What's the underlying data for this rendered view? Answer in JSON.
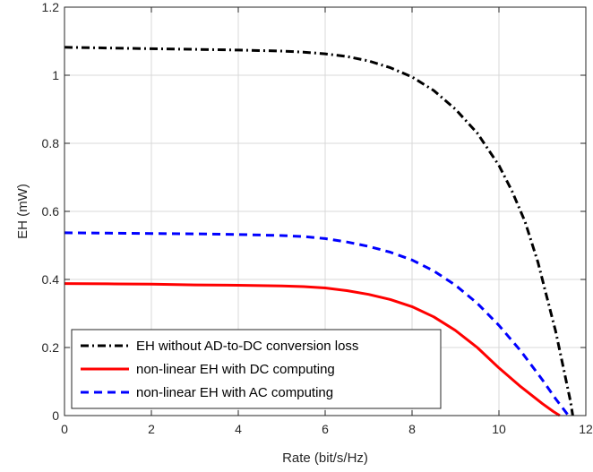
{
  "chart_data": {
    "type": "line",
    "xlabel": "Rate (bit/s/Hz)",
    "ylabel": "EH (mW)",
    "xlim": [
      0,
      12
    ],
    "ylim": [
      0,
      1.2
    ],
    "xticks": [
      0,
      2,
      4,
      6,
      8,
      10,
      12
    ],
    "yticks": [
      0,
      0.2,
      0.4,
      0.6,
      0.8,
      1,
      1.2
    ],
    "xtick_labels": [
      "0",
      "2",
      "4",
      "6",
      "8",
      "10",
      "12"
    ],
    "ytick_labels": [
      "0",
      "0.2",
      "0.4",
      "0.6",
      "0.8",
      "1",
      "1.2"
    ],
    "grid": true,
    "legend_position": "bottom-left",
    "series": [
      {
        "name": "EH without AD-to-DC conversion loss",
        "color": "#000000",
        "style": "dashdot",
        "x": [
          0,
          1,
          2,
          3,
          4,
          5,
          5.5,
          6,
          6.5,
          7,
          7.5,
          8,
          8.5,
          9,
          9.5,
          10,
          10.3,
          10.6,
          10.9,
          11.1,
          11.3,
          11.5,
          11.65,
          11.7
        ],
        "y": [
          1.082,
          1.08,
          1.078,
          1.076,
          1.074,
          1.071,
          1.068,
          1.063,
          1.055,
          1.042,
          1.022,
          0.995,
          0.955,
          0.9,
          0.83,
          0.735,
          0.66,
          0.57,
          0.45,
          0.35,
          0.25,
          0.13,
          0.04,
          0
        ]
      },
      {
        "name": "non-linear EH with DC computing",
        "color": "#ff0000",
        "style": "solid",
        "x": [
          0,
          1,
          2,
          3,
          4,
          5,
          5.5,
          6,
          6.5,
          7,
          7.5,
          8,
          8.5,
          9,
          9.5,
          10,
          10.5,
          11,
          11.25,
          11.4
        ],
        "y": [
          0.388,
          0.387,
          0.386,
          0.384,
          0.383,
          0.381,
          0.379,
          0.375,
          0.367,
          0.356,
          0.341,
          0.32,
          0.29,
          0.25,
          0.2,
          0.14,
          0.085,
          0.035,
          0.012,
          0
        ]
      },
      {
        "name": "non-linear EH with AC computing",
        "color": "#0000ff",
        "style": "dashed",
        "x": [
          0,
          1,
          2,
          3,
          4,
          5,
          5.5,
          6,
          6.5,
          7,
          7.5,
          8,
          8.5,
          9,
          9.5,
          10,
          10.5,
          11,
          11.3,
          11.6
        ],
        "y": [
          0.537,
          0.536,
          0.535,
          0.534,
          0.532,
          0.529,
          0.526,
          0.52,
          0.51,
          0.497,
          0.48,
          0.457,
          0.425,
          0.383,
          0.33,
          0.265,
          0.19,
          0.105,
          0.05,
          0
        ]
      }
    ]
  }
}
